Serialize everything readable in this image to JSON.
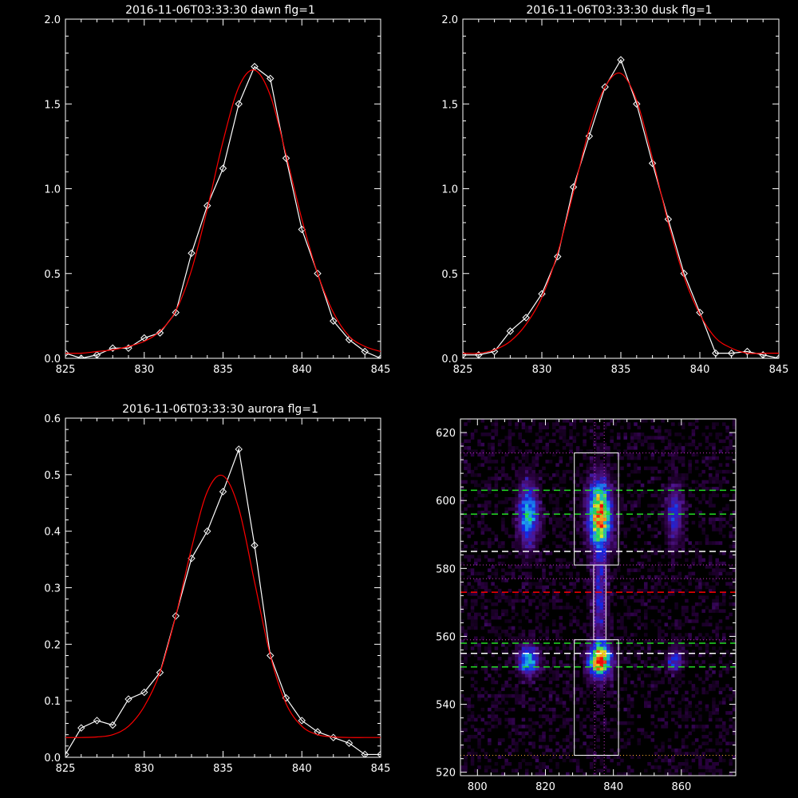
{
  "colors": {
    "background": "#000000",
    "axes": "#ffffff",
    "measured": "#ffffff",
    "fit": "#ff0000",
    "green_lines": "#22dd22",
    "white_dashed": "#ffffff",
    "red_dashed": "#ff0000",
    "magenta_dotted": "#cc33cc",
    "orange_dotted": "#ffaa33"
  },
  "chart_data": [
    {
      "type": "line",
      "title": "2016-11-06T03:33:30 dawn flg=1",
      "xlim": [
        825,
        845
      ],
      "ylim": [
        0,
        2
      ],
      "xticks": [
        "825",
        "830",
        "835",
        "840",
        "845"
      ],
      "yticks": [
        "0.0",
        "0.5",
        "1.0",
        "1.5",
        "2.0"
      ],
      "series": [
        {
          "kind": "measured",
          "marker": "diamond",
          "x": [
            825,
            826,
            827,
            828,
            829,
            830,
            831,
            832,
            833,
            834,
            835,
            836,
            837,
            838,
            839,
            840,
            841,
            842,
            843,
            844,
            845
          ],
          "y": [
            0.03,
            0.0,
            0.02,
            0.06,
            0.06,
            0.12,
            0.15,
            0.27,
            0.62,
            0.9,
            1.12,
            1.5,
            1.72,
            1.65,
            1.18,
            0.76,
            0.5,
            0.22,
            0.11,
            0.04,
            0.0
          ]
        },
        {
          "kind": "fit",
          "x": [
            825,
            826,
            827,
            828,
            829,
            830,
            831,
            832,
            833,
            834,
            835,
            836,
            837,
            838,
            839,
            840,
            841,
            842,
            843,
            844,
            845
          ],
          "y": [
            0.03,
            0.03,
            0.04,
            0.05,
            0.07,
            0.1,
            0.16,
            0.28,
            0.52,
            0.88,
            1.28,
            1.6,
            1.7,
            1.55,
            1.2,
            0.82,
            0.5,
            0.27,
            0.13,
            0.07,
            0.04
          ]
        }
      ]
    },
    {
      "type": "line",
      "title": "2016-11-06T03:33:30 dusk flg=1",
      "xlim": [
        825,
        845
      ],
      "ylim": [
        0,
        2
      ],
      "xticks": [
        "825",
        "830",
        "835",
        "840",
        "845"
      ],
      "yticks": [
        "0.0",
        "0.5",
        "1.0",
        "1.5",
        "2.0"
      ],
      "series": [
        {
          "kind": "measured",
          "marker": "diamond",
          "x": [
            825,
            826,
            827,
            828,
            829,
            830,
            831,
            832,
            833,
            834,
            835,
            836,
            837,
            838,
            839,
            840,
            841,
            842,
            843,
            844,
            845
          ],
          "y": [
            0.02,
            0.02,
            0.04,
            0.16,
            0.24,
            0.38,
            0.6,
            1.01,
            1.31,
            1.6,
            1.76,
            1.5,
            1.15,
            0.82,
            0.5,
            0.27,
            0.03,
            0.03,
            0.04,
            0.02,
            0.0
          ]
        },
        {
          "kind": "fit",
          "x": [
            825,
            826,
            827,
            828,
            829,
            830,
            831,
            832,
            833,
            834,
            835,
            836,
            837,
            838,
            839,
            840,
            841,
            842,
            843,
            844,
            845
          ],
          "y": [
            0.03,
            0.03,
            0.05,
            0.1,
            0.2,
            0.36,
            0.62,
            0.98,
            1.35,
            1.6,
            1.68,
            1.52,
            1.18,
            0.8,
            0.48,
            0.26,
            0.12,
            0.06,
            0.03,
            0.03,
            0.03
          ]
        }
      ]
    },
    {
      "type": "line",
      "title": "2016-11-06T03:33:30 aurora flg=1",
      "xlim": [
        825,
        845
      ],
      "ylim": [
        0,
        0.6
      ],
      "xticks": [
        "825",
        "830",
        "835",
        "840",
        "845"
      ],
      "yticks": [
        "0.0",
        "0.1",
        "0.2",
        "0.3",
        "0.4",
        "0.5",
        "0.6"
      ],
      "series": [
        {
          "kind": "measured",
          "marker": "diamond",
          "x": [
            825,
            826,
            827,
            828,
            829,
            830,
            831,
            832,
            833,
            834,
            835,
            836,
            837,
            838,
            839,
            840,
            841,
            842,
            843,
            844,
            845
          ],
          "y": [
            0.005,
            0.052,
            0.065,
            0.057,
            0.103,
            0.115,
            0.15,
            0.25,
            0.352,
            0.4,
            0.47,
            0.545,
            0.375,
            0.18,
            0.105,
            0.065,
            0.045,
            0.035,
            0.025,
            0.005,
            0.005
          ]
        },
        {
          "kind": "fit",
          "x": [
            825,
            826,
            827,
            828,
            829,
            830,
            831,
            832,
            833,
            834,
            835,
            836,
            837,
            838,
            839,
            840,
            841,
            842,
            843,
            844,
            845
          ],
          "y": [
            0.035,
            0.035,
            0.036,
            0.04,
            0.055,
            0.09,
            0.15,
            0.25,
            0.37,
            0.47,
            0.498,
            0.44,
            0.31,
            0.18,
            0.095,
            0.055,
            0.04,
            0.036,
            0.035,
            0.035,
            0.035
          ]
        }
      ]
    },
    {
      "type": "heatmap",
      "title": "",
      "xlim": [
        795,
        876
      ],
      "ylim": [
        519,
        624
      ],
      "xticks": [
        "800",
        "820",
        "840",
        "860"
      ],
      "yticks": [
        "520",
        "540",
        "560",
        "580",
        "600",
        "620"
      ],
      "blobs": [
        {
          "x": 815,
          "y": 596,
          "sx": 2.0,
          "sy": 6.5,
          "amp": 0.55
        },
        {
          "x": 815,
          "y": 553,
          "sx": 2.0,
          "sy": 3.0,
          "amp": 0.55
        },
        {
          "x": 836,
          "y": 596,
          "sx": 2.3,
          "sy": 6.5,
          "amp": 0.95
        },
        {
          "x": 836,
          "y": 553,
          "sx": 2.2,
          "sy": 3.2,
          "amp": 1.0
        },
        {
          "x": 836,
          "y": 572,
          "sx": 1.6,
          "sy": 10,
          "amp": 0.3
        },
        {
          "x": 858,
          "y": 596,
          "sx": 1.6,
          "sy": 6.0,
          "amp": 0.35
        },
        {
          "x": 858,
          "y": 553,
          "sx": 1.6,
          "sy": 2.5,
          "amp": 0.35
        }
      ],
      "boxes": [
        {
          "x0": 828.5,
          "x1": 841.5,
          "y0": 581,
          "y1": 614
        },
        {
          "x0": 828.5,
          "x1": 841.5,
          "y0": 525,
          "y1": 559
        },
        {
          "x0": 834.2,
          "x1": 837.8,
          "y0": 559,
          "y1": 581
        }
      ],
      "hlines": [
        {
          "y": 614,
          "style": "dotted",
          "color": "magenta"
        },
        {
          "y": 603,
          "style": "dashed",
          "color": "green"
        },
        {
          "y": 596,
          "style": "dashed",
          "color": "green"
        },
        {
          "y": 585,
          "style": "dashed",
          "color": "white"
        },
        {
          "y": 581,
          "style": "dotted",
          "color": "magenta"
        },
        {
          "y": 577,
          "style": "dotted",
          "color": "magenta"
        },
        {
          "y": 573,
          "style": "dashed",
          "color": "red"
        },
        {
          "y": 559,
          "style": "dotted",
          "color": "magenta"
        },
        {
          "y": 558,
          "style": "dashed",
          "color": "green"
        },
        {
          "y": 555,
          "style": "dashed",
          "color": "white"
        },
        {
          "y": 551,
          "style": "dashed",
          "color": "green"
        },
        {
          "y": 525,
          "style": "dotted",
          "color": "orange"
        }
      ],
      "vlines": [
        {
          "x": 834.5,
          "style": "dotted",
          "color": "magenta"
        },
        {
          "x": 837.3,
          "style": "dotted",
          "color": "magenta"
        }
      ]
    }
  ]
}
